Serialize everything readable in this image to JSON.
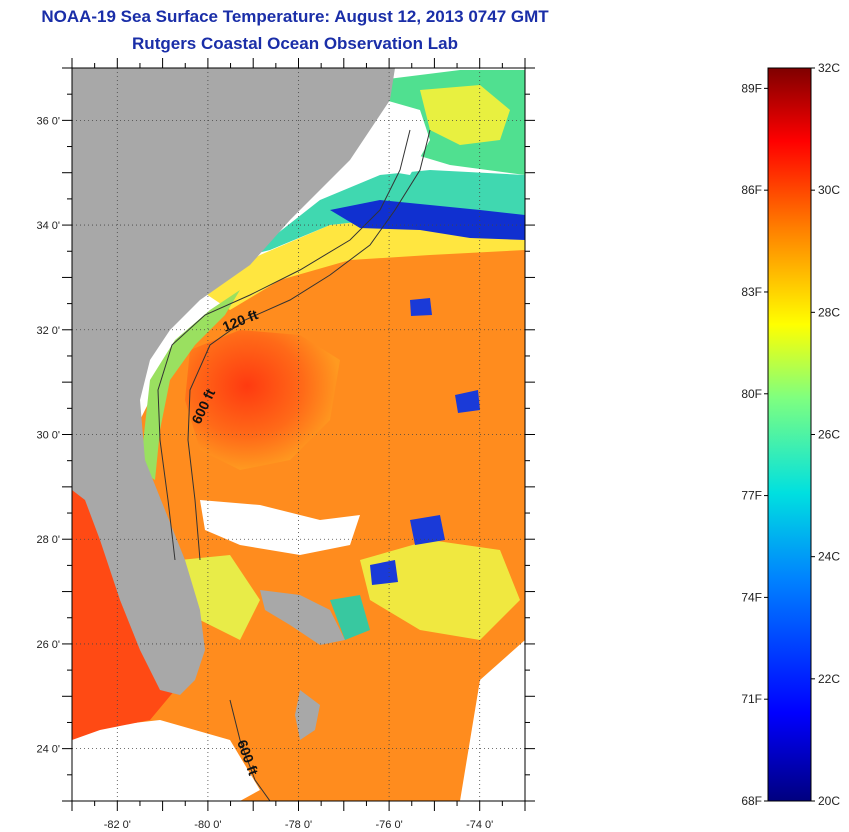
{
  "title": "NOAA-19 Sea Surface Temperature:  August 12, 2013 0747 GMT",
  "subtitle": "Rutgers Coastal Ocean Observation Lab",
  "map": {
    "lon_range": [
      -83,
      -73
    ],
    "lat_range": [
      23,
      37
    ],
    "x_tick_labels": [
      "-82 0'",
      "-80 0'",
      "-78 0'",
      "-76 0'",
      "-74 0'"
    ],
    "x_tick_values": [
      -82,
      -80,
      -78,
      -76,
      -74
    ],
    "y_tick_labels": [
      "36 0'",
      "34 0'",
      "32 0'",
      "30 0'",
      "28 0'",
      "26 0'",
      "24 0'"
    ],
    "y_tick_values": [
      36,
      34,
      32,
      30,
      28,
      26,
      24
    ],
    "grid": "dotted",
    "contour_labels": [
      "120 ft",
      "600 ft",
      "600 ft"
    ],
    "land_color": "#a8a8a8"
  },
  "colorbar": {
    "fahrenheit_labels": [
      "89F",
      "86F",
      "83F",
      "80F",
      "77F",
      "74F",
      "71F",
      "68F"
    ],
    "fahrenheit_values": [
      89,
      86,
      83,
      80,
      77,
      74,
      71,
      68
    ],
    "celsius_labels": [
      "32C",
      "30C",
      "28C",
      "26C",
      "24C",
      "22C",
      "20C"
    ],
    "celsius_values": [
      32,
      30,
      28,
      26,
      24,
      22,
      20
    ],
    "range_c": [
      20,
      32
    ]
  }
}
